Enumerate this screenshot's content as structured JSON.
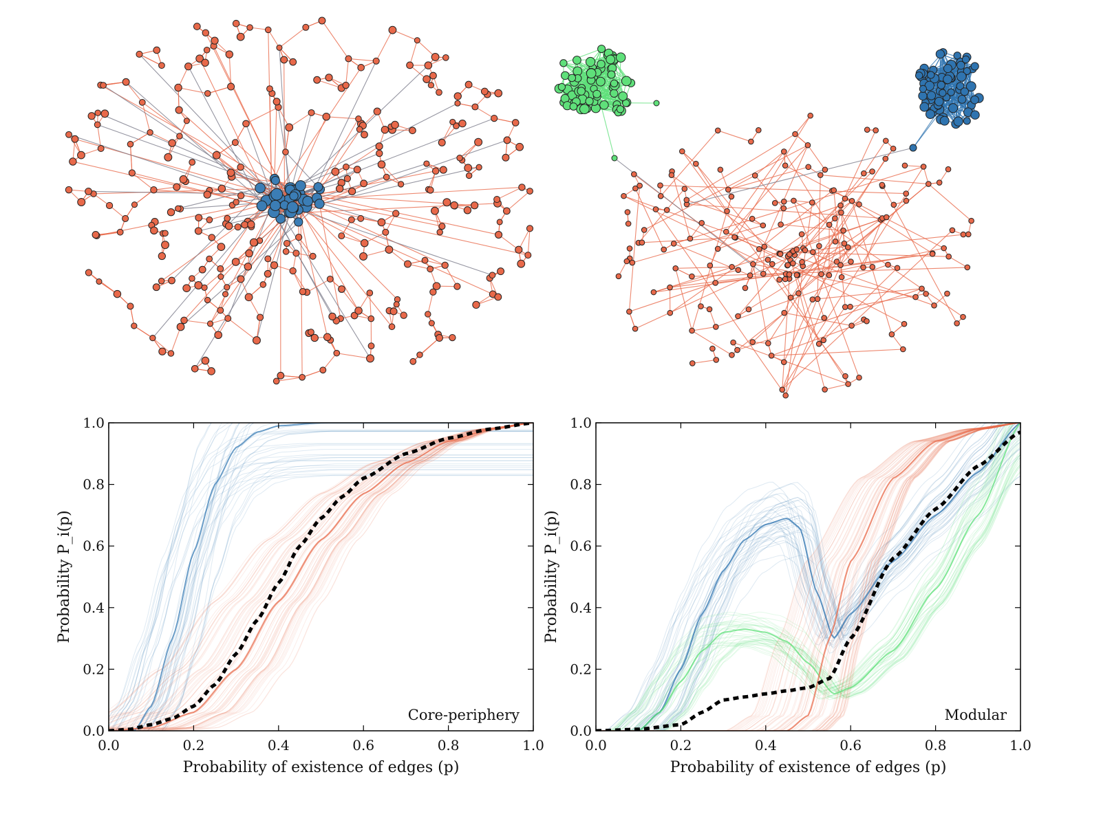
{
  "colors": {
    "core": "#3b7db5",
    "periphery": "#e8694a",
    "module_green": "#5fe07a",
    "module_blue": "#2f74b0",
    "bridge": "#7a7a8a",
    "mean_curve": "#000000"
  },
  "networks": [
    {
      "name": "core-periphery-network",
      "node_groups": [
        "core",
        "periphery"
      ]
    },
    {
      "name": "modular-network",
      "node_groups": [
        "module_green",
        "module_blue",
        "periphery"
      ]
    }
  ],
  "chart_data": [
    {
      "type": "line",
      "label": "Core-periphery",
      "xlabel": "Probability of existence of edges (p)",
      "ylabel": "Probability P_i(p)",
      "xlim": [
        0.0,
        1.0
      ],
      "ylim": [
        0.0,
        1.0
      ],
      "xticks": [
        "0.0",
        "0.2",
        "0.4",
        "0.6",
        "0.8",
        "1.0"
      ],
      "yticks": [
        "0.0",
        "0.2",
        "0.4",
        "0.6",
        "0.8",
        "1.0"
      ],
      "grid": false,
      "series": [
        {
          "group": "core",
          "x": [
            0,
            0.06,
            0.1,
            0.15,
            0.2,
            0.25,
            0.3,
            0.35,
            0.4,
            0.5,
            0.6,
            0.8,
            1.0
          ],
          "y": [
            0,
            0.0,
            0.08,
            0.3,
            0.58,
            0.8,
            0.92,
            0.97,
            0.99,
            1.0,
            1.0,
            1.0,
            1.0
          ]
        },
        {
          "group": "periphery",
          "x": [
            0,
            0.1,
            0.2,
            0.3,
            0.4,
            0.5,
            0.6,
            0.7,
            0.8,
            0.9,
            1.0
          ],
          "y": [
            0,
            0.01,
            0.06,
            0.2,
            0.42,
            0.62,
            0.77,
            0.87,
            0.94,
            0.98,
            1.0
          ]
        },
        {
          "group": "mean",
          "x": [
            0,
            0.05,
            0.1,
            0.15,
            0.2,
            0.25,
            0.3,
            0.35,
            0.4,
            0.45,
            0.5,
            0.55,
            0.6,
            0.7,
            0.8,
            0.9,
            1.0
          ],
          "y": [
            0,
            0.005,
            0.02,
            0.04,
            0.08,
            0.15,
            0.25,
            0.36,
            0.48,
            0.6,
            0.69,
            0.76,
            0.82,
            0.9,
            0.95,
            0.98,
            1.0
          ]
        }
      ]
    },
    {
      "type": "line",
      "label": "Modular",
      "xlabel": "Probability of existence of edges (p)",
      "ylabel": "Probability P_i(p)",
      "xlim": [
        0.0,
        1.0
      ],
      "ylim": [
        0.0,
        1.0
      ],
      "xticks": [
        "0.0",
        "0.2",
        "0.4",
        "0.6",
        "0.8",
        "1.0"
      ],
      "yticks": [
        "0.0",
        "0.2",
        "0.4",
        "0.6",
        "0.8",
        "1.0"
      ],
      "grid": false,
      "series": [
        {
          "group": "module_blue",
          "x": [
            0.1,
            0.15,
            0.2,
            0.25,
            0.3,
            0.35,
            0.4,
            0.45,
            0.48,
            0.52,
            0.56,
            0.6,
            0.7,
            0.8,
            0.9,
            1.0
          ],
          "y": [
            0.0,
            0.06,
            0.2,
            0.38,
            0.52,
            0.62,
            0.67,
            0.69,
            0.66,
            0.45,
            0.3,
            0.38,
            0.55,
            0.7,
            0.84,
            1.0
          ]
        },
        {
          "group": "module_green",
          "x": [
            0.1,
            0.15,
            0.2,
            0.25,
            0.3,
            0.35,
            0.4,
            0.45,
            0.5,
            0.56,
            0.6,
            0.7,
            0.8,
            0.9,
            1.0
          ],
          "y": [
            0.0,
            0.06,
            0.16,
            0.26,
            0.32,
            0.33,
            0.32,
            0.29,
            0.22,
            0.12,
            0.14,
            0.26,
            0.46,
            0.7,
            1.0
          ]
        },
        {
          "group": "periphery",
          "x": [
            0,
            0.4,
            0.45,
            0.5,
            0.55,
            0.6,
            0.7,
            0.8,
            0.9,
            1.0
          ],
          "y": [
            0,
            0.0,
            0.0,
            0.05,
            0.3,
            0.55,
            0.82,
            0.94,
            0.98,
            1.0
          ]
        },
        {
          "group": "mean",
          "x": [
            0,
            0.1,
            0.2,
            0.25,
            0.3,
            0.35,
            0.4,
            0.45,
            0.5,
            0.55,
            0.6,
            0.7,
            0.8,
            0.9,
            1.0
          ],
          "y": [
            0,
            0.005,
            0.02,
            0.06,
            0.1,
            0.11,
            0.12,
            0.13,
            0.14,
            0.17,
            0.3,
            0.56,
            0.72,
            0.86,
            0.97
          ]
        }
      ]
    }
  ]
}
